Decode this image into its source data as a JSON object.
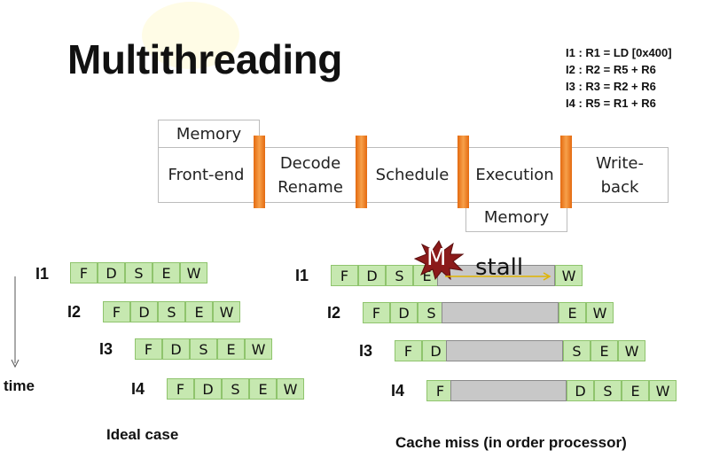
{
  "title": "Multithreading",
  "instructions": [
    "I1 : R1 = LD [0x400]",
    "I2 : R2 = R5 + R6",
    "I3 : R3 = R2 + R6",
    "I4 : R5 = R1 + R6"
  ],
  "pipeline": {
    "memory_top": "Memory",
    "stages": [
      "Front-end",
      "Decode\nRename",
      "Schedule",
      "Execution",
      "Write-\nback"
    ],
    "memory_bottom": "Memory"
  },
  "ideal": {
    "rows": [
      {
        "label": "I1",
        "cells": [
          "F",
          "D",
          "S",
          "E",
          "W"
        ]
      },
      {
        "label": "I2",
        "cells": [
          "F",
          "D",
          "S",
          "E",
          "W"
        ]
      },
      {
        "label": "I3",
        "cells": [
          "F",
          "D",
          "S",
          "E",
          "W"
        ]
      },
      {
        "label": "I4",
        "cells": [
          "F",
          "D",
          "S",
          "E",
          "W"
        ]
      }
    ],
    "time_label": "time",
    "caption": "Ideal case"
  },
  "miss": {
    "rows": [
      {
        "label": "I1",
        "before": [
          "F",
          "D",
          "S",
          "E"
        ],
        "after": [
          "W"
        ]
      },
      {
        "label": "I2",
        "before": [
          "F",
          "D",
          "S"
        ],
        "after": [
          "E",
          "W"
        ]
      },
      {
        "label": "I3",
        "before": [
          "F",
          "D"
        ],
        "after": [
          "S",
          "E",
          "W"
        ]
      },
      {
        "label": "I4",
        "before": [
          "F"
        ],
        "after": [
          "D",
          "S",
          "E",
          "W"
        ]
      }
    ],
    "miss_marker": "M",
    "stall_label": "stall",
    "caption": "Cache miss  (in order processor)"
  },
  "colors": {
    "cell_fill": "#c6e8b0",
    "cell_border": "#8fc46d",
    "stall_fill": "#c8c8c8",
    "latch": "#f08a2a",
    "miss_star": "#8b1a1a"
  }
}
